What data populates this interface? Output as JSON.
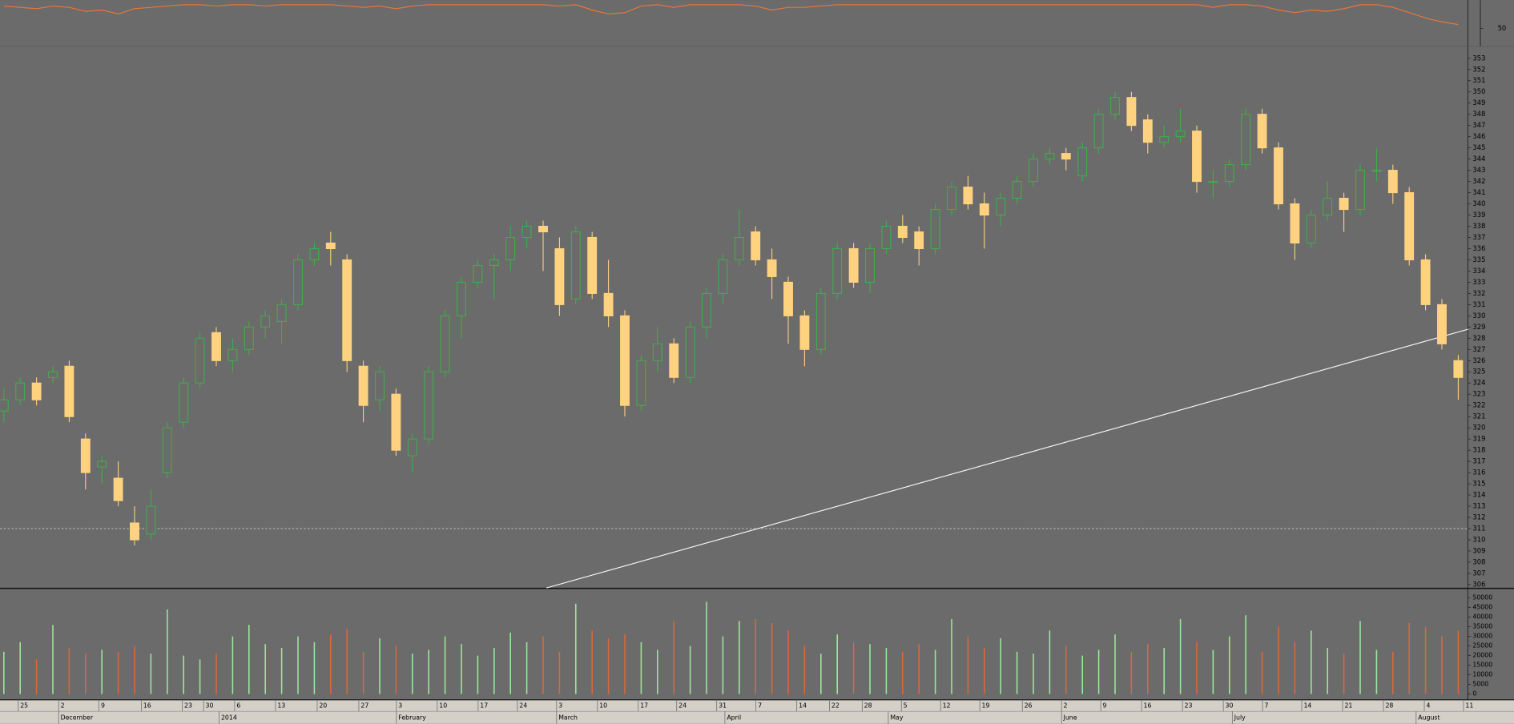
{
  "chart_data": {
    "type": "candlestick",
    "open": [
      321.5,
      322.5,
      324,
      324.5,
      325.5,
      319,
      316.5,
      315.5,
      311.5,
      310.5,
      316,
      320.5,
      324,
      328.5,
      326,
      327,
      329,
      329.5,
      331,
      335,
      336.5,
      335,
      325.5,
      322.5,
      323,
      317.5,
      319,
      325,
      330,
      333,
      334.5,
      335,
      337,
      338,
      336,
      331.5,
      337,
      332,
      330,
      322,
      326,
      327.5,
      324.5,
      329,
      332,
      335,
      337.5,
      335,
      333,
      330,
      327,
      332,
      336,
      333,
      336,
      338,
      337.5,
      336,
      339.5,
      341.5,
      340,
      339,
      340.5,
      342,
      344,
      344.5,
      342.5,
      345,
      348,
      349.5,
      347.5,
      345.5,
      346,
      346.5,
      342,
      342,
      343.5,
      348,
      345,
      340,
      336.5,
      339,
      340.5,
      339.5,
      343,
      343,
      341,
      335,
      331,
      326
    ],
    "high": [
      323.5,
      324.5,
      324.5,
      325.5,
      326,
      319.5,
      317.5,
      317,
      313,
      314.5,
      320.5,
      324.5,
      328.5,
      329,
      328,
      329.5,
      330.5,
      331.5,
      335.5,
      336.5,
      337.5,
      335.5,
      326,
      325.5,
      323.5,
      319.5,
      325.5,
      330.5,
      333.5,
      335,
      335.5,
      338,
      338.5,
      338.5,
      337,
      338,
      337.5,
      335,
      330.5,
      326.5,
      329,
      328,
      329.5,
      332.5,
      335.5,
      339.5,
      338,
      336,
      333.5,
      330.5,
      332.5,
      336.5,
      336.5,
      336.5,
      338.5,
      339,
      338,
      340,
      342,
      342.5,
      341,
      341,
      342.5,
      344.5,
      345,
      345,
      345.5,
      348.5,
      350,
      350,
      348,
      347,
      348.5,
      347,
      343,
      344,
      348.5,
      348.5,
      345.5,
      340.5,
      339.5,
      342,
      341,
      343.5,
      345,
      343.5,
      341.5,
      335.5,
      331.5,
      326.5
    ],
    "low": [
      320.5,
      322,
      322,
      324,
      320.5,
      314.5,
      315,
      313,
      309.5,
      310,
      315.5,
      320,
      323.5,
      325.5,
      325,
      326.5,
      328,
      327.5,
      330.5,
      334.5,
      334.5,
      325,
      320.5,
      321.5,
      317.5,
      316,
      318.5,
      324.5,
      328,
      332.5,
      331.5,
      334,
      336,
      334,
      330,
      331,
      331.5,
      329,
      321,
      321.5,
      325,
      324,
      324,
      328,
      331,
      334.5,
      334.5,
      331.5,
      327.5,
      325.5,
      326.5,
      331.5,
      332.5,
      332,
      335.5,
      336.5,
      334.5,
      335.5,
      339,
      339.5,
      336,
      338,
      340,
      341.5,
      343.5,
      343,
      342,
      344.5,
      347.5,
      346.5,
      344.5,
      345,
      345.5,
      341,
      340.5,
      341.5,
      343,
      344.5,
      339.5,
      335,
      336,
      338.5,
      337.5,
      339,
      342,
      340,
      334.5,
      330.5,
      327,
      322.5
    ],
    "close": [
      322.5,
      324,
      322.5,
      325,
      321,
      316,
      317,
      313.5,
      310,
      313,
      320,
      324,
      328,
      326,
      327,
      329,
      330,
      331,
      335,
      336,
      336,
      326,
      322,
      325,
      318,
      319,
      325,
      330,
      333,
      334.5,
      335,
      337,
      338,
      337.5,
      331,
      337.5,
      332,
      330,
      322,
      326,
      327.5,
      324.5,
      329,
      332,
      335,
      337,
      335,
      333.5,
      330,
      327,
      332,
      336,
      333,
      336,
      338,
      337,
      336,
      339.5,
      341.5,
      340,
      339,
      340.5,
      342,
      344,
      344.5,
      344,
      345,
      348,
      349.5,
      347,
      345.5,
      346,
      346.5,
      342,
      342,
      343.5,
      348,
      345,
      340,
      336.5,
      339,
      340.5,
      339.5,
      343,
      343,
      341,
      335,
      331,
      327.5,
      324.5
    ],
    "volume": [
      22000,
      27000,
      18000,
      36000,
      24000,
      21000,
      23000,
      22000,
      25000,
      21000,
      44000,
      20000,
      18000,
      21000,
      30000,
      36000,
      26000,
      24000,
      30000,
      27000,
      31000,
      34000,
      22000,
      29000,
      25000,
      21000,
      23000,
      30000,
      26000,
      20000,
      24000,
      32000,
      27000,
      30000,
      22000,
      47000,
      33000,
      29000,
      31000,
      27000,
      23000,
      38000,
      25000,
      48000,
      30000,
      38000,
      39000,
      37000,
      33000,
      25000,
      21000,
      31000,
      27000,
      26000,
      24000,
      22000,
      26000,
      23000,
      39000,
      30000,
      24000,
      29000,
      22000,
      21000,
      33000,
      25000,
      20000,
      23000,
      31000,
      22000,
      26000,
      24000,
      39000,
      27000,
      23000,
      30000,
      41000,
      22000,
      35000,
      27000,
      33000,
      24000,
      21000,
      38000,
      23000,
      22000,
      37000,
      35000,
      30000,
      33000
    ],
    "indicator": [
      58.5,
      58,
      57.5,
      58.5,
      58,
      56.5,
      57,
      55.5,
      57.5,
      58,
      58.5,
      59,
      59,
      58.5,
      59,
      59,
      58.5,
      59,
      59,
      59,
      59,
      58.5,
      58,
      58.5,
      57.5,
      58.5,
      59,
      59,
      59,
      59,
      59,
      59,
      59,
      59,
      58.5,
      59,
      57,
      55.5,
      56,
      58.5,
      59,
      58,
      59,
      59,
      59,
      59,
      58.5,
      57,
      58,
      58,
      58.5,
      59,
      59,
      59,
      59,
      59,
      59,
      59,
      59,
      59,
      59,
      59,
      59,
      59,
      59,
      59,
      59,
      59,
      59,
      59,
      59,
      59,
      59,
      59,
      58,
      59,
      59,
      58.5,
      57,
      56,
      57,
      56.5,
      57.5,
      59,
      59,
      58,
      56,
      54,
      52.5,
      51.5
    ],
    "indicator_ylim": [
      44,
      60
    ],
    "indicator_ticks": [
      50
    ],
    "ylim": [
      305.75,
      353.9
    ],
    "yticks": [
      306,
      307,
      308,
      309,
      310,
      311,
      312,
      313,
      314,
      315,
      316,
      317,
      318,
      319,
      320,
      321,
      322,
      323,
      324,
      325,
      326,
      327,
      328,
      329,
      330,
      331,
      332,
      333,
      334,
      335,
      336,
      337,
      338,
      339,
      340,
      341,
      342,
      343,
      344,
      345,
      346,
      347,
      348,
      349,
      350,
      351,
      352,
      353
    ],
    "volume_ylim": [
      0,
      50000
    ],
    "volume_ticks": [
      0,
      5000,
      10000,
      15000,
      20000,
      25000,
      30000,
      35000,
      40000,
      45000,
      50000
    ],
    "hline": 311,
    "trendline": {
      "x": [
        33.2,
        89.6
      ],
      "y": [
        305.7,
        328.8
      ]
    },
    "day_ticks": [
      {
        "value": 1.06,
        "label": "25"
      },
      {
        "value": 3.53,
        "label": "2"
      },
      {
        "value": 6,
        "label": "9"
      },
      {
        "value": 8.59,
        "label": "16"
      },
      {
        "value": 11.1,
        "label": "23"
      },
      {
        "value": 12.4,
        "label": "30"
      },
      {
        "value": 14.3,
        "label": "6"
      },
      {
        "value": 16.8,
        "label": "13"
      },
      {
        "value": 19.35,
        "label": "20"
      },
      {
        "value": 21.9,
        "label": "27"
      },
      {
        "value": 24.2,
        "label": "3"
      },
      {
        "value": 26.7,
        "label": "10"
      },
      {
        "value": 29.2,
        "label": "17"
      },
      {
        "value": 31.6,
        "label": "24"
      },
      {
        "value": 34,
        "label": "3"
      },
      {
        "value": 36.5,
        "label": "10"
      },
      {
        "value": 39,
        "label": "17"
      },
      {
        "value": 41.35,
        "label": "24"
      },
      {
        "value": 43.8,
        "label": "31"
      },
      {
        "value": 46.2,
        "label": "7"
      },
      {
        "value": 48.7,
        "label": "14"
      },
      {
        "value": 50.7,
        "label": "22"
      },
      {
        "value": 52.7,
        "label": "28"
      },
      {
        "value": 55.1,
        "label": "5"
      },
      {
        "value": 57.5,
        "label": "12"
      },
      {
        "value": 59.9,
        "label": "19"
      },
      {
        "value": 62.5,
        "label": "26"
      },
      {
        "value": 64.9,
        "label": "2"
      },
      {
        "value": 67.3,
        "label": "9"
      },
      {
        "value": 69.8,
        "label": "16"
      },
      {
        "value": 72.3,
        "label": "23"
      },
      {
        "value": 74.8,
        "label": "30"
      },
      {
        "value": 77.2,
        "label": "7"
      },
      {
        "value": 79.6,
        "label": "14"
      },
      {
        "value": 82.1,
        "label": "21"
      },
      {
        "value": 84.6,
        "label": "28"
      },
      {
        "value": 87.1,
        "label": "4"
      },
      {
        "value": 89.5,
        "label": "11"
      }
    ],
    "month_ticks": [
      {
        "value": 3.53,
        "label": "December"
      },
      {
        "value": 13.35,
        "label": "2014"
      },
      {
        "value": 24.2,
        "label": "February"
      },
      {
        "value": 34,
        "label": "March"
      },
      {
        "value": 44.3,
        "label": "April"
      },
      {
        "value": 54.3,
        "label": "May"
      },
      {
        "value": 64.9,
        "label": "June"
      },
      {
        "value": 75.35,
        "label": "July"
      },
      {
        "value": 86.6,
        "label": "August"
      }
    ],
    "colors": {
      "up": "#3fae49",
      "down": "#ffd27f",
      "volume_up": "#9be89b",
      "volume_down": "#d9693a",
      "indicator": "#e8763a",
      "trend": "#ffffff",
      "background": "#6b6b6b"
    }
  }
}
